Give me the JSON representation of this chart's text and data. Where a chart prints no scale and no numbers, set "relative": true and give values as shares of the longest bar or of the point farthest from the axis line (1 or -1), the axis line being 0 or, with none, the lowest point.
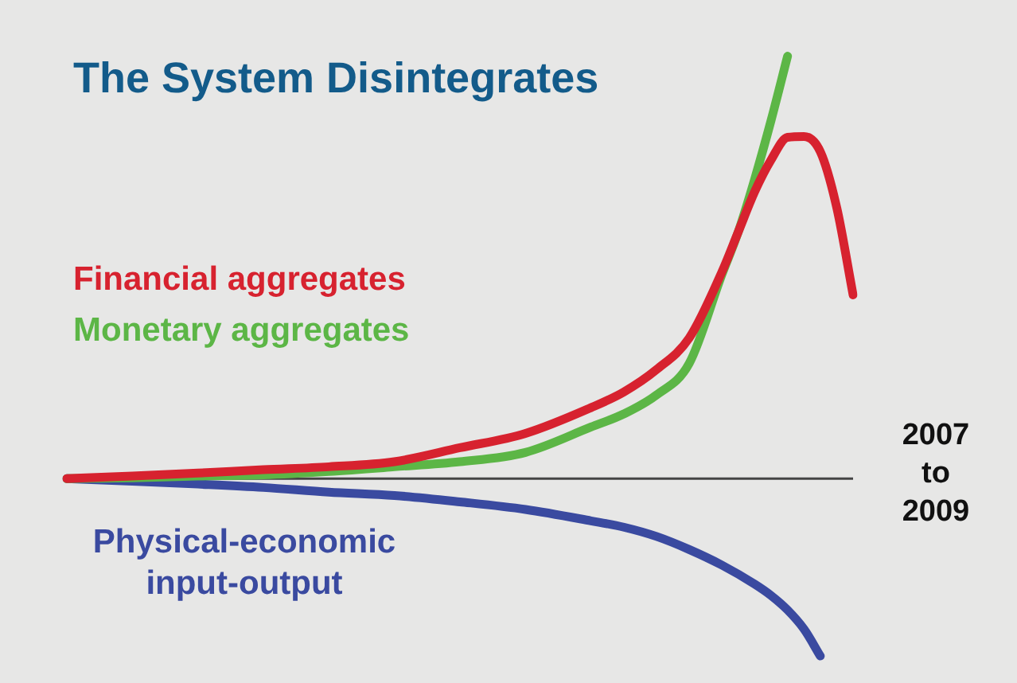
{
  "chart_data": {
    "type": "line",
    "title": "The System Disintegrates",
    "relative": true,
    "categories": [
      null,
      null,
      null,
      null,
      null,
      null,
      null,
      null,
      null,
      null,
      null,
      null,
      null,
      null,
      null,
      null,
      null,
      null,
      null,
      null,
      null,
      null,
      null,
      null,
      null,
      null,
      null,
      null,
      null,
      null,
      null,
      null,
      null,
      null,
      null,
      null,
      null,
      null,
      null,
      null,
      null,
      null,
      null,
      null,
      null,
      null,
      null,
      null,
      null
    ],
    "series": [
      {
        "name": "Financial aggregates",
        "color": "#d7222f",
        "values": [
          0,
          null,
          null,
          null,
          0.006,
          null,
          null,
          null,
          0.013,
          null,
          null,
          null,
          0.021,
          null,
          null,
          null,
          0.028,
          null,
          null,
          null,
          0.04,
          null,
          null,
          null,
          0.073,
          null,
          null,
          null,
          0.107,
          null,
          null,
          null,
          0.168,
          null,
          0.205,
          null,
          0.258,
          null,
          0.333,
          null,
          0.49,
          0.585,
          0.68,
          0.755,
          0.808,
          0.81,
          0.774,
          0.642,
          0.435
        ]
      },
      {
        "name": "Monetary aggregates",
        "color": "#5cb646",
        "values": [
          0,
          null,
          null,
          null,
          0.002,
          null,
          null,
          null,
          0.006,
          null,
          null,
          null,
          0.009,
          null,
          null,
          null,
          0.017,
          null,
          null,
          null,
          0.028,
          null,
          null,
          null,
          0.04,
          null,
          null,
          null,
          0.062,
          null,
          null,
          null,
          0.122,
          null,
          0.153,
          null,
          0.198,
          null,
          0.273,
          null,
          0.484,
          0.585,
          0.71,
          0.849,
          1,
          null,
          null,
          null,
          null
        ]
      },
      {
        "name": "Physical-economic input-output",
        "color": "#3a4aa0",
        "values": [
          0,
          null,
          null,
          null,
          -0.006,
          null,
          null,
          null,
          -0.013,
          null,
          null,
          null,
          -0.021,
          null,
          null,
          null,
          -0.032,
          null,
          null,
          null,
          -0.04,
          null,
          null,
          null,
          -0.055,
          null,
          null,
          null,
          -0.073,
          null,
          null,
          null,
          -0.1,
          null,
          -0.115,
          null,
          -0.137,
          null,
          -0.168,
          null,
          -0.205,
          null,
          -0.25,
          -0.277,
          -0.311,
          -0.356,
          -0.42,
          null,
          null
        ]
      }
    ],
    "annotations": [
      "2007 to 2009"
    ]
  }
}
